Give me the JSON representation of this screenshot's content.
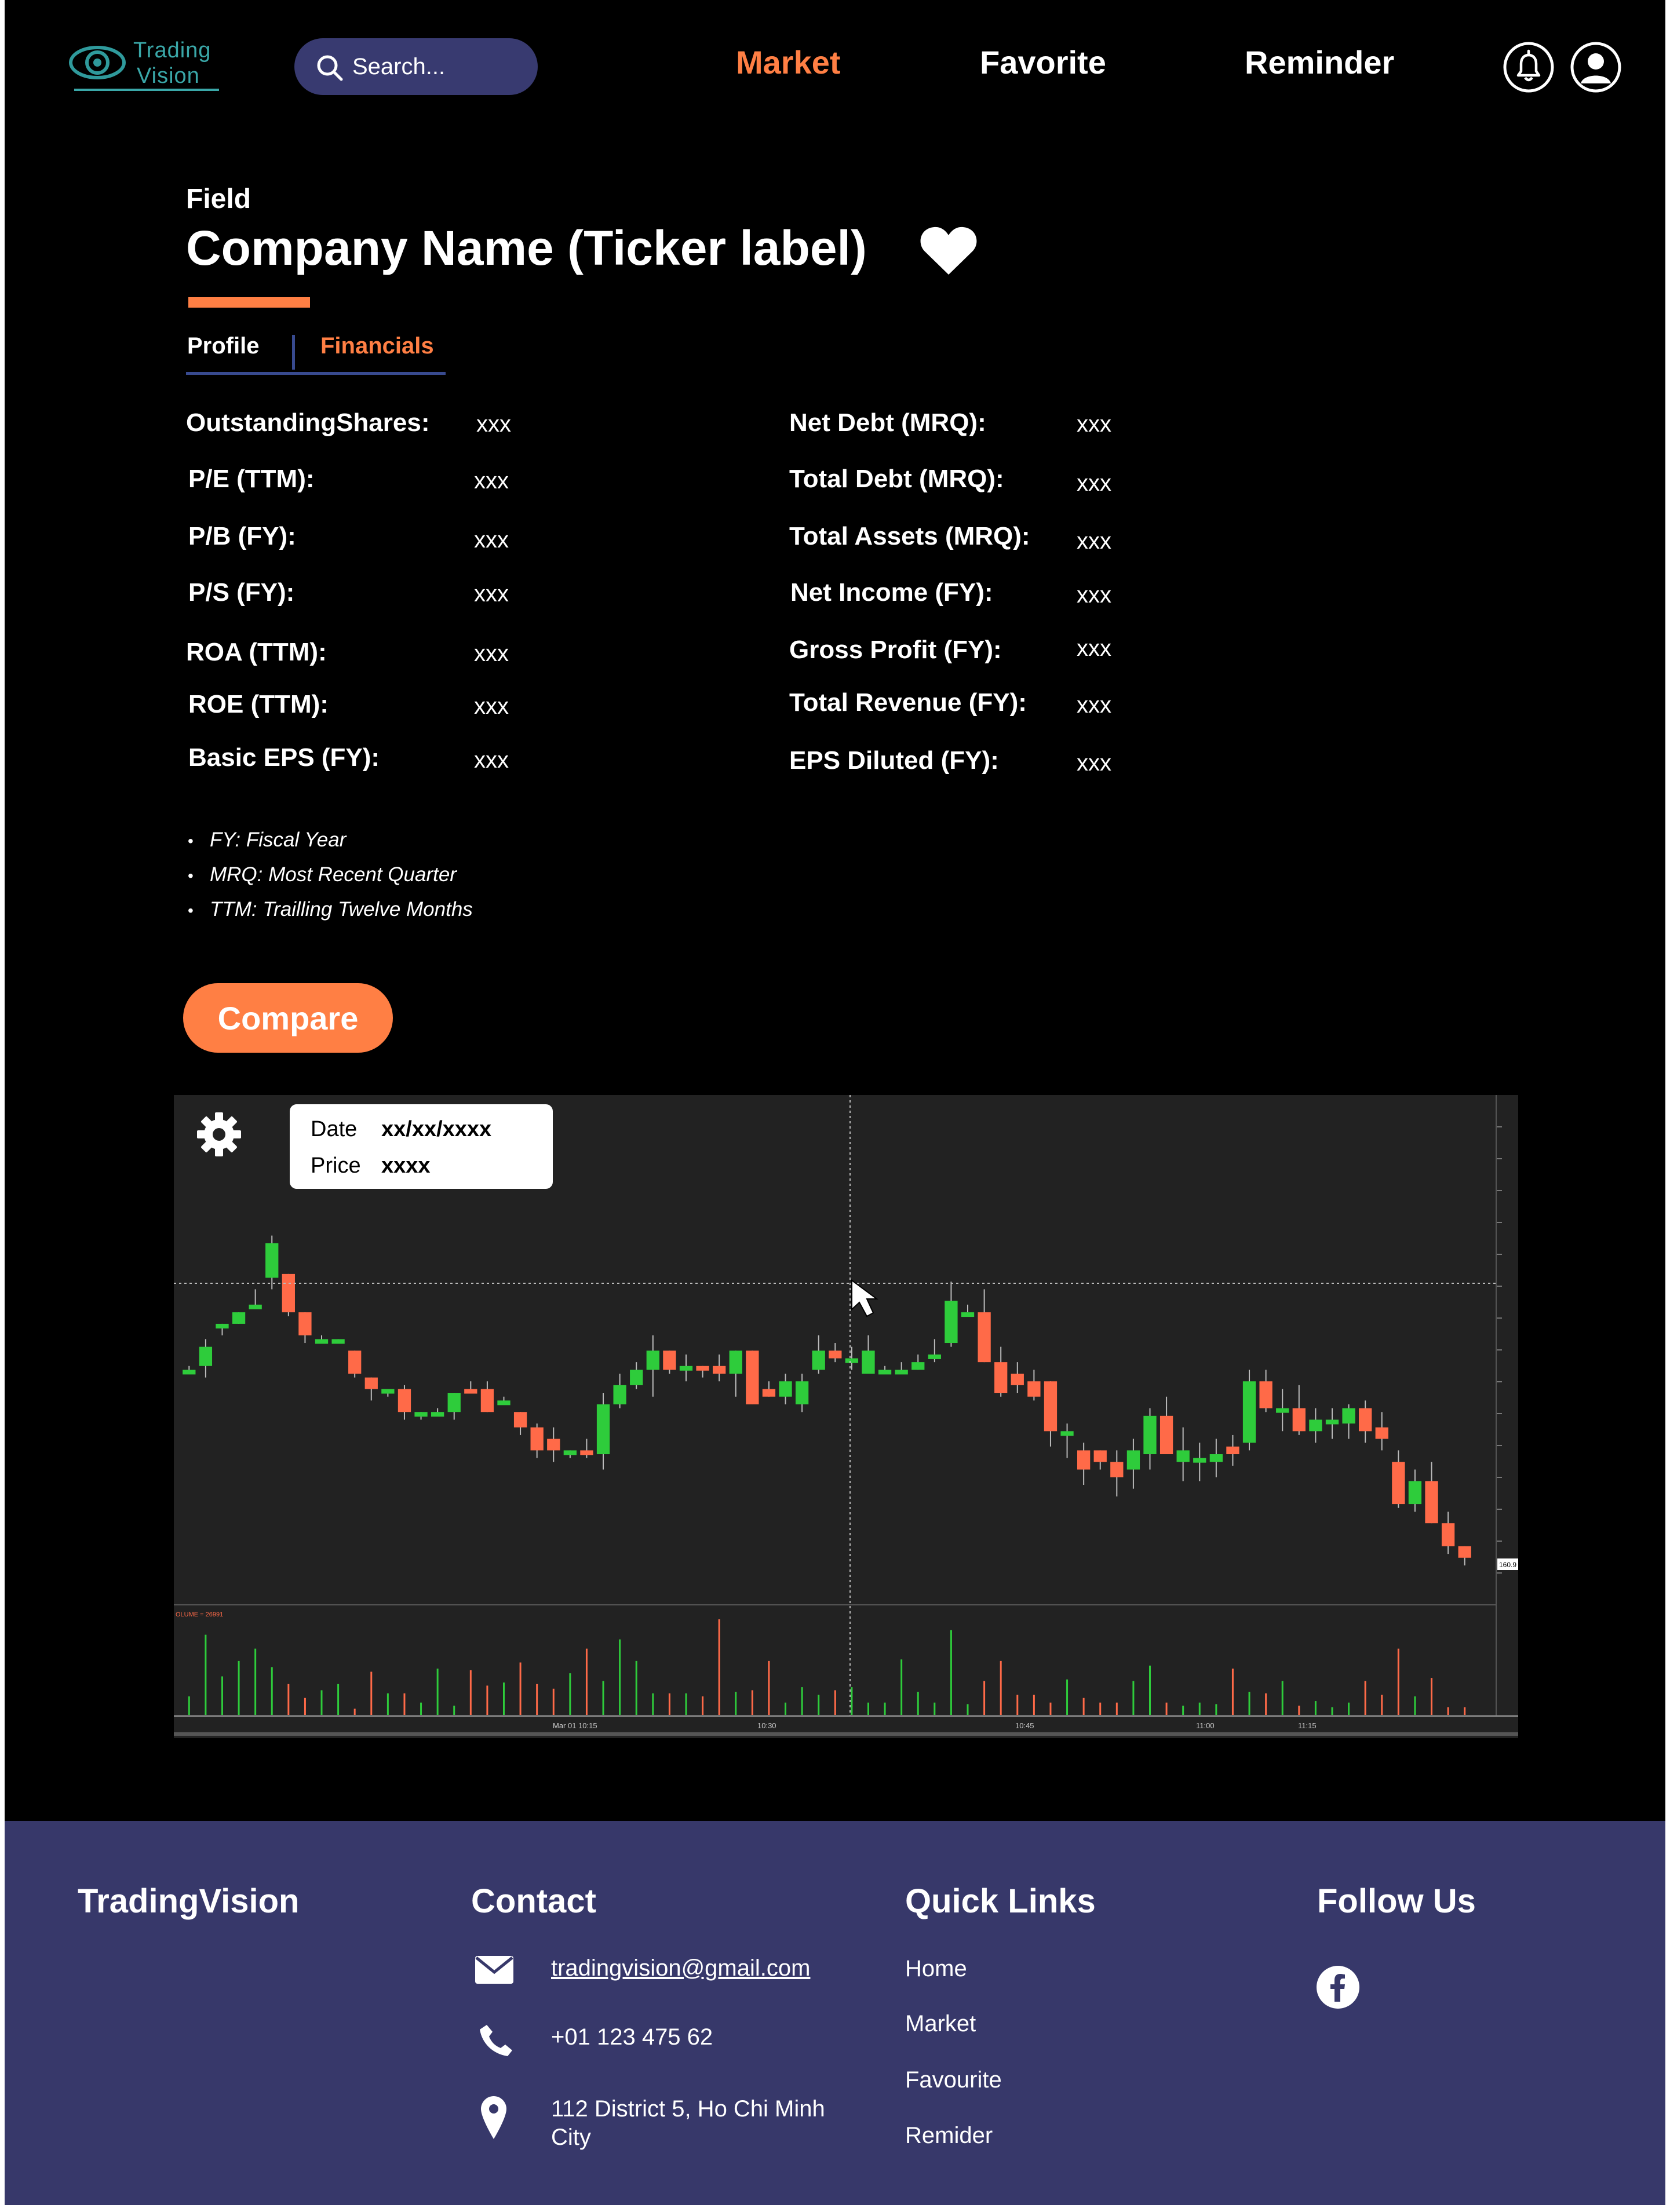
{
  "header": {
    "logo": {
      "line1": "Trading",
      "line2": "Vision"
    },
    "search": {
      "placeholder": "Search..."
    },
    "nav": [
      {
        "label": "Market",
        "active": true
      },
      {
        "label": "Favorite",
        "active": false
      },
      {
        "label": "Reminder",
        "active": false
      }
    ],
    "icons": [
      "bell-icon",
      "user-icon"
    ]
  },
  "company": {
    "field": "Field",
    "title": "Company Name (Ticker label)",
    "favorite_icon": "heart-icon"
  },
  "tabs": [
    {
      "label": "Profile",
      "active": false
    },
    {
      "label": "Financials",
      "active": true
    }
  ],
  "metrics": {
    "left": [
      {
        "label": "OutstandingShares:",
        "value": "xxx"
      },
      {
        "label": "P/E (TTM):",
        "value": "xxx"
      },
      {
        "label": "P/B (FY):",
        "value": "xxx"
      },
      {
        "label": "P/S (FY):",
        "value": "xxx"
      },
      {
        "label": "ROA (TTM):",
        "value": "xxx"
      },
      {
        "label": "ROE (TTM):",
        "value": "xxx"
      },
      {
        "label": "Basic EPS (FY):",
        "value": "xxx"
      }
    ],
    "right": [
      {
        "label": "Net Debt (MRQ):",
        "value": "xxx"
      },
      {
        "label": "Total Debt (MRQ):",
        "value": "xxx"
      },
      {
        "label": "Total Assets (MRQ):",
        "value": "xxx"
      },
      {
        "label": "Net Income (FY):",
        "value": "xxx"
      },
      {
        "label": "Gross Profit (FY):",
        "value": "xxx"
      },
      {
        "label": "Total Revenue (FY):",
        "value": "xxx"
      },
      {
        "label": "EPS Diluted (FY):",
        "value": "xxx"
      }
    ]
  },
  "notes": [
    "FY: Fiscal Year",
    "MRQ: Most Recent Quarter",
    "TTM: Trailling Twelve Months"
  ],
  "compare_button": "Compare",
  "chart": {
    "tooltip": {
      "date_label": "Date",
      "date_value": "xx/xx/xxxx",
      "price_label": "Price",
      "price_value": "xxxx"
    },
    "volume_label": "OLUME = 26991",
    "price_marker": "160.9",
    "x_ticks": [
      "Mar 01 10:15",
      "10:30",
      "10:45",
      "11:00",
      "11:15"
    ],
    "colors": {
      "up": "#2ecc3b",
      "down": "#ff6a48",
      "background": "#222222",
      "grid": "#3a3a3a"
    }
  },
  "chart_data": {
    "type": "candlestick",
    "x_ticks": [
      "Mar 01 10:15",
      "10:30",
      "10:45",
      "11:00",
      "11:15"
    ],
    "price_range": [
      0,
      100
    ],
    "candles": [
      {
        "o": 51,
        "c": 51,
        "h": 52,
        "l": 51
      },
      {
        "o": 52,
        "c": 57,
        "h": 59,
        "l": 49
      },
      {
        "o": 63,
        "c": 63,
        "h": 63,
        "l": 60
      },
      {
        "o": 63,
        "c": 66,
        "h": 66,
        "l": 63
      },
      {
        "o": 68,
        "c": 68,
        "h": 72,
        "l": 67
      },
      {
        "o": 75,
        "c": 84,
        "h": 86,
        "l": 72
      },
      {
        "o": 76,
        "c": 66,
        "h": 76,
        "l": 65
      },
      {
        "o": 66,
        "c": 60,
        "h": 66,
        "l": 58
      },
      {
        "o": 59,
        "c": 59,
        "h": 60,
        "l": 58
      },
      {
        "o": 59,
        "c": 59,
        "h": 59,
        "l": 58
      },
      {
        "o": 56,
        "c": 50,
        "h": 56,
        "l": 49
      },
      {
        "o": 49,
        "c": 46,
        "h": 49,
        "l": 43
      },
      {
        "o": 46,
        "c": 46,
        "h": 46,
        "l": 44
      },
      {
        "o": 46,
        "c": 40,
        "h": 47,
        "l": 38
      },
      {
        "o": 40,
        "c": 40,
        "h": 40,
        "l": 38
      },
      {
        "o": 40,
        "c": 40,
        "h": 41,
        "l": 39
      },
      {
        "o": 40,
        "c": 45,
        "h": 45,
        "l": 38
      },
      {
        "o": 46,
        "c": 45,
        "h": 48,
        "l": 45
      },
      {
        "o": 46,
        "c": 40,
        "h": 48,
        "l": 40
      },
      {
        "o": 43,
        "c": 43,
        "h": 44,
        "l": 42
      },
      {
        "o": 40,
        "c": 36,
        "h": 40,
        "l": 34
      },
      {
        "o": 36,
        "c": 30,
        "h": 37,
        "l": 28
      },
      {
        "o": 33,
        "c": 30,
        "h": 36,
        "l": 27
      },
      {
        "o": 30,
        "c": 30,
        "h": 30,
        "l": 28
      },
      {
        "o": 30,
        "c": 29,
        "h": 33,
        "l": 28
      },
      {
        "o": 29,
        "c": 42,
        "h": 45,
        "l": 25
      },
      {
        "o": 42,
        "c": 47,
        "h": 50,
        "l": 41
      },
      {
        "o": 47,
        "c": 51,
        "h": 53,
        "l": 46
      },
      {
        "o": 51,
        "c": 56,
        "h": 60,
        "l": 44
      },
      {
        "o": 56,
        "c": 51,
        "h": 56,
        "l": 50
      },
      {
        "o": 52,
        "c": 52,
        "h": 55,
        "l": 48
      },
      {
        "o": 52,
        "c": 51,
        "h": 52,
        "l": 49
      },
      {
        "o": 52,
        "c": 50,
        "h": 55,
        "l": 48
      },
      {
        "o": 50,
        "c": 56,
        "h": 56,
        "l": 44
      },
      {
        "o": 56,
        "c": 42,
        "h": 56,
        "l": 42
      },
      {
        "o": 46,
        "c": 44,
        "h": 48,
        "l": 44
      },
      {
        "o": 44,
        "c": 48,
        "h": 50,
        "l": 42
      },
      {
        "o": 42,
        "c": 48,
        "h": 50,
        "l": 40
      },
      {
        "o": 51,
        "c": 56,
        "h": 60,
        "l": 50
      },
      {
        "o": 56,
        "c": 54,
        "h": 58,
        "l": 53
      },
      {
        "o": 54,
        "c": 54,
        "h": 57,
        "l": 51
      },
      {
        "o": 50,
        "c": 56,
        "h": 60,
        "l": 50
      },
      {
        "o": 51,
        "c": 51,
        "h": 52,
        "l": 50
      },
      {
        "o": 51,
        "c": 51,
        "h": 53,
        "l": 50
      },
      {
        "o": 51,
        "c": 53,
        "h": 55,
        "l": 51
      },
      {
        "o": 55,
        "c": 55,
        "h": 59,
        "l": 53
      },
      {
        "o": 58,
        "c": 69,
        "h": 74,
        "l": 57
      },
      {
        "o": 66,
        "c": 66,
        "h": 68,
        "l": 66
      },
      {
        "o": 66,
        "c": 53,
        "h": 72,
        "l": 53
      },
      {
        "o": 53,
        "c": 45,
        "h": 57,
        "l": 44
      },
      {
        "o": 50,
        "c": 47,
        "h": 53,
        "l": 45
      },
      {
        "o": 48,
        "c": 44,
        "h": 51,
        "l": 43
      },
      {
        "o": 48,
        "c": 35,
        "h": 48,
        "l": 31
      },
      {
        "o": 35,
        "c": 35,
        "h": 37,
        "l": 28
      },
      {
        "o": 30,
        "c": 25,
        "h": 32,
        "l": 21
      },
      {
        "o": 30,
        "c": 27,
        "h": 30,
        "l": 25
      },
      {
        "o": 27,
        "c": 23,
        "h": 30,
        "l": 18
      },
      {
        "o": 25,
        "c": 30,
        "h": 33,
        "l": 20
      },
      {
        "o": 29,
        "c": 39,
        "h": 41,
        "l": 25
      },
      {
        "o": 39,
        "c": 29,
        "h": 44,
        "l": 29
      },
      {
        "o": 27,
        "c": 30,
        "h": 36,
        "l": 22
      },
      {
        "o": 27,
        "c": 28,
        "h": 32,
        "l": 22
      },
      {
        "o": 27,
        "c": 29,
        "h": 33,
        "l": 23
      },
      {
        "o": 31,
        "c": 29,
        "h": 34,
        "l": 26
      },
      {
        "o": 32,
        "c": 48,
        "h": 51,
        "l": 30
      },
      {
        "o": 48,
        "c": 41,
        "h": 51,
        "l": 40
      },
      {
        "o": 41,
        "c": 41,
        "h": 46,
        "l": 35
      },
      {
        "o": 41,
        "c": 35,
        "h": 47,
        "l": 34
      },
      {
        "o": 35,
        "c": 38,
        "h": 41,
        "l": 32
      },
      {
        "o": 38,
        "c": 38,
        "h": 41,
        "l": 33
      },
      {
        "o": 37,
        "c": 41,
        "h": 42,
        "l": 33
      },
      {
        "o": 41,
        "c": 35,
        "h": 43,
        "l": 32
      },
      {
        "o": 36,
        "c": 33,
        "h": 40,
        "l": 30
      },
      {
        "o": 27,
        "c": 16,
        "h": 30,
        "l": 15
      },
      {
        "o": 16,
        "c": 22,
        "h": 25,
        "l": 14
      },
      {
        "o": 22,
        "c": 11,
        "h": 27,
        "l": 11
      },
      {
        "o": 11,
        "c": 5,
        "h": 14,
        "l": 3
      },
      {
        "o": 5,
        "c": 2,
        "h": 5,
        "l": 0
      }
    ],
    "volumes": [
      12,
      52,
      25,
      35,
      43,
      31,
      20,
      11,
      16,
      20,
      4,
      28,
      14,
      14,
      8,
      30,
      6,
      29,
      19,
      21,
      34,
      20,
      17,
      27,
      43,
      22,
      49,
      35,
      14,
      14,
      14,
      12,
      62,
      15,
      16,
      35,
      8,
      18,
      13,
      16,
      18,
      8,
      8,
      36,
      15,
      8,
      55,
      7,
      22,
      35,
      13,
      13,
      8,
      23,
      11,
      8,
      8,
      22,
      32,
      8,
      6,
      8,
      7,
      30,
      15,
      14,
      22,
      6,
      9,
      5,
      8,
      22,
      13,
      43,
      12,
      24,
      5,
      5
    ]
  },
  "footer": {
    "brand": "TradingVision",
    "contact": {
      "title": "Contact",
      "email": "tradingvision@gmail.com",
      "phone": "+01 123 475 62",
      "address_line1": "112 District 5, Ho Chi Minh",
      "address_line2": "City"
    },
    "quick_links": {
      "title": "Quick Links",
      "items": [
        "Home",
        "Market",
        "Favourite",
        "Remider"
      ]
    },
    "follow": {
      "title": "Follow Us",
      "icons": [
        "facebook-icon"
      ]
    }
  }
}
